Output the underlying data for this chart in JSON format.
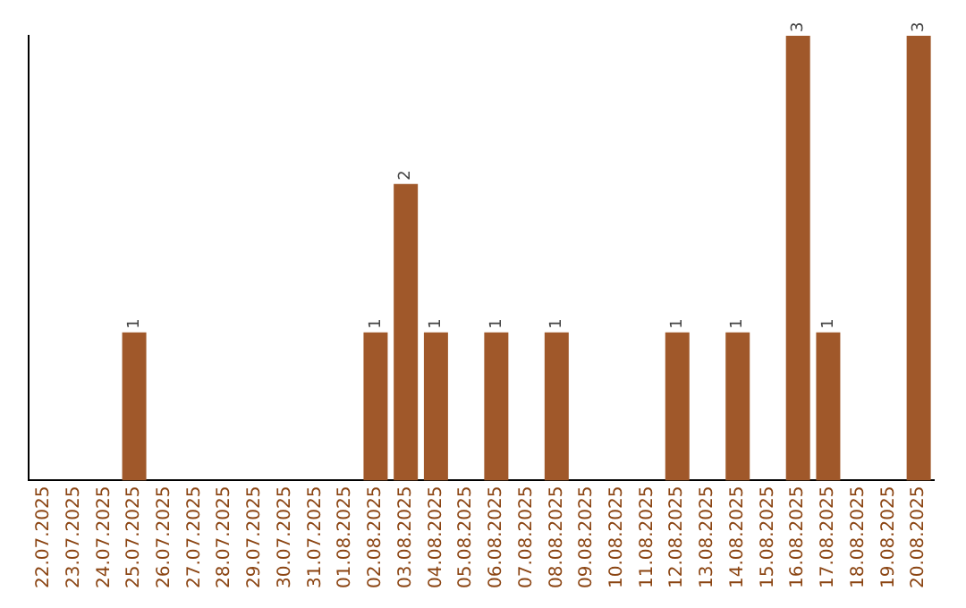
{
  "chart_data": {
    "type": "bar",
    "categories": [
      "22.07.2025",
      "23.07.2025",
      "24.07.2025",
      "25.07.2025",
      "26.07.2025",
      "27.07.2025",
      "28.07.2025",
      "29.07.2025",
      "30.07.2025",
      "31.07.2025",
      "01.08.2025",
      "02.08.2025",
      "03.08.2025",
      "04.08.2025",
      "05.08.2025",
      "06.08.2025",
      "07.08.2025",
      "08.08.2025",
      "09.08.2025",
      "10.08.2025",
      "11.08.2025",
      "12.08.2025",
      "13.08.2025",
      "14.08.2025",
      "15.08.2025",
      "16.08.2025",
      "17.08.2025",
      "18.08.2025",
      "19.08.2025",
      "20.08.2025"
    ],
    "values": [
      0,
      0,
      0,
      1,
      0,
      0,
      0,
      0,
      0,
      0,
      0,
      1,
      2,
      1,
      0,
      1,
      0,
      1,
      0,
      0,
      0,
      1,
      0,
      1,
      0,
      3,
      1,
      0,
      0,
      3
    ],
    "value_labels": [
      null,
      null,
      null,
      "1",
      null,
      null,
      null,
      null,
      null,
      null,
      null,
      "1",
      "2",
      "1",
      null,
      "1",
      null,
      "1",
      null,
      null,
      null,
      "1",
      null,
      "1",
      null,
      "3",
      "1",
      null,
      null,
      "3"
    ],
    "color": "#a0582a",
    "grid": false,
    "legend": false,
    "tick_labels": "x"
  }
}
